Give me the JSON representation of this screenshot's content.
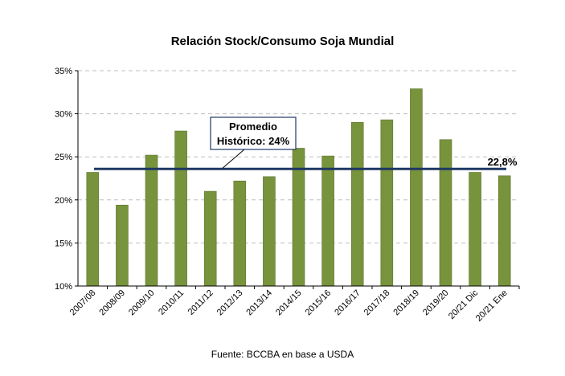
{
  "chart_data": {
    "type": "bar",
    "title": "Relación Stock/Consumo Soja Mundial",
    "categories": [
      "2007/08",
      "2008/09",
      "2009/10",
      "2010/11",
      "2011/12",
      "2012/13",
      "2013/14",
      "2014/15",
      "2015/16",
      "2016/17",
      "2017/18",
      "2018/19",
      "2019/20",
      "20/21 Dic",
      "20/21 Ene"
    ],
    "values": [
      23.2,
      19.4,
      25.2,
      28.0,
      21.0,
      22.2,
      22.7,
      26.0,
      25.1,
      29.0,
      29.3,
      32.9,
      27.0,
      23.2,
      22.8
    ],
    "ylim": [
      10,
      35
    ],
    "yticks": [
      10,
      15,
      20,
      25,
      30,
      35
    ],
    "ytick_labels": [
      "10%",
      "15%",
      "20%",
      "25%",
      "30%",
      "35%"
    ],
    "grid": true,
    "bar_color": "#77933c",
    "average_line": {
      "value": 23.6,
      "color": "#1f3864"
    },
    "annotation_box": {
      "line1": "Promedio",
      "line2": "Histórico: 24%"
    },
    "last_value_label": "22,8%",
    "xlabel": "",
    "ylabel": ""
  },
  "source": "Fuente: BCCBA en base a USDA"
}
